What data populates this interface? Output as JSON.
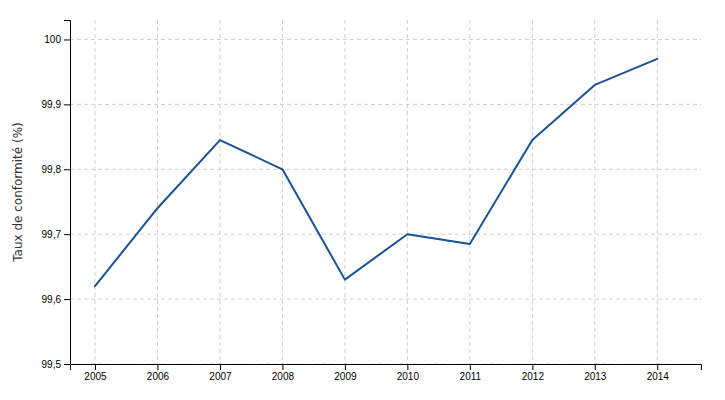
{
  "chart_data": {
    "type": "line",
    "ylabel": "Taux de conformité (%)",
    "x": [
      2005,
      2006,
      2007,
      2008,
      2009,
      2010,
      2011,
      2012,
      2013,
      2014
    ],
    "values": [
      99.62,
      99.74,
      99.845,
      99.8,
      99.63,
      99.7,
      99.685,
      99.845,
      99.93,
      99.97
    ],
    "color": "#1a5296",
    "xlim": [
      2004.6,
      2014.7
    ],
    "xticks": [
      2005,
      2006,
      2007,
      2008,
      2009,
      2010,
      2011,
      2012,
      2013,
      2014
    ],
    "ylim": [
      99.5,
      100.03
    ],
    "yticks": [
      {
        "value": 99.5,
        "label": "99,5"
      },
      {
        "value": 99.6,
        "label": "99,6"
      },
      {
        "value": 99.7,
        "label": "99,7"
      },
      {
        "value": 99.8,
        "label": "99,8"
      },
      {
        "value": 99.9,
        "label": "99,9"
      },
      100
    ],
    "grid": true
  }
}
